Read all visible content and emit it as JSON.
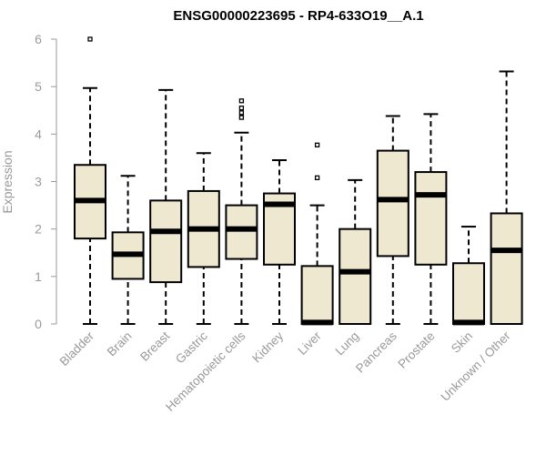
{
  "chart_data": {
    "type": "boxplot",
    "title": "ENSG00000223695 - RP4-633O19__A.1",
    "xlabel": "",
    "ylabel": "Expression",
    "ylim": [
      0,
      6
    ],
    "yticks": [
      0,
      1,
      2,
      3,
      4,
      5,
      6
    ],
    "grid": false,
    "colors": {
      "box_fill": "#efe8d0",
      "box_stroke": "#000000",
      "axis": "#999999",
      "text": "#999999"
    },
    "categories": [
      "Bladder",
      "Brain",
      "Breast",
      "Gastric",
      "Hematopoietic cells",
      "Kidney",
      "Liver",
      "Lung",
      "Pancreas",
      "Prostate",
      "Skin",
      "Unknown / Other"
    ],
    "boxes": [
      {
        "name": "Bladder",
        "min": 0,
        "q1": 1.8,
        "median": 2.6,
        "q3": 3.35,
        "max": 4.97,
        "outliers": [
          6.0
        ]
      },
      {
        "name": "Brain",
        "min": 0,
        "q1": 0.95,
        "median": 1.47,
        "q3": 1.93,
        "max": 3.12,
        "outliers": []
      },
      {
        "name": "Breast",
        "min": 0,
        "q1": 0.88,
        "median": 1.95,
        "q3": 2.6,
        "max": 4.93,
        "outliers": []
      },
      {
        "name": "Gastric",
        "min": 0,
        "q1": 1.2,
        "median": 2.0,
        "q3": 2.8,
        "max": 3.6,
        "outliers": []
      },
      {
        "name": "Hematopoietic cells",
        "min": 0,
        "q1": 1.37,
        "median": 2.0,
        "q3": 2.5,
        "max": 4.03,
        "outliers": [
          4.35,
          4.45,
          4.55,
          4.7
        ]
      },
      {
        "name": "Kidney",
        "min": 0,
        "q1": 1.25,
        "median": 2.52,
        "q3": 2.75,
        "max": 3.45,
        "outliers": []
      },
      {
        "name": "Liver",
        "min": 0,
        "q1": 0,
        "median": 0.03,
        "q3": 1.22,
        "max": 2.5,
        "outliers": [
          3.08,
          3.77
        ]
      },
      {
        "name": "Lung",
        "min": 0,
        "q1": 0,
        "median": 1.1,
        "q3": 2.0,
        "max": 3.03,
        "outliers": []
      },
      {
        "name": "Pancreas",
        "min": 0,
        "q1": 1.43,
        "median": 2.62,
        "q3": 3.65,
        "max": 4.38,
        "outliers": []
      },
      {
        "name": "Prostate",
        "min": 0,
        "q1": 1.25,
        "median": 2.72,
        "q3": 3.2,
        "max": 4.42,
        "outliers": []
      },
      {
        "name": "Skin",
        "min": 0,
        "q1": 0,
        "median": 0.03,
        "q3": 1.28,
        "max": 2.05,
        "outliers": []
      },
      {
        "name": "Unknown / Other",
        "min": 0,
        "q1": 0,
        "median": 1.55,
        "q3": 2.33,
        "max": 5.32,
        "outliers": []
      }
    ]
  }
}
